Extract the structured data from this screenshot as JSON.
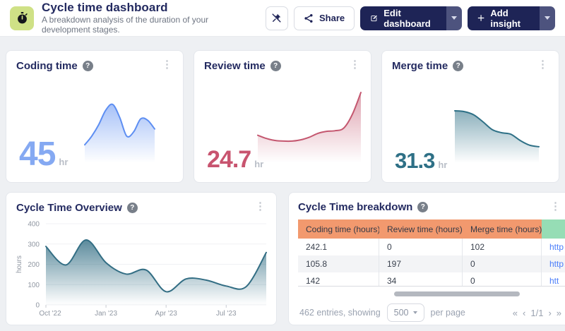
{
  "header": {
    "title": "Cycle time dashboard",
    "subtitle": "A breakdown analysis of the duration of your development stages.",
    "actions": {
      "share": "Share",
      "edit": "Edit dashboard",
      "add": "Add insight"
    }
  },
  "stat_cards": [
    {
      "title": "Coding time",
      "value": "45",
      "unit": "hr",
      "value_color": "#85a9f2"
    },
    {
      "title": "Review time",
      "value": "24.7",
      "unit": "hr",
      "value_color": "#c8546f"
    },
    {
      "title": "Merge time",
      "value": "31.3",
      "unit": "hr",
      "value_color": "#2e7086"
    }
  ],
  "overview_card": {
    "title": "Cycle Time Overview"
  },
  "breakdown_card": {
    "title": "Cycle Time breakdown",
    "columns": [
      "Coding time (hours)",
      "Review time (hours)",
      "Merge time (hours)",
      ""
    ],
    "rows": [
      [
        "242.1",
        "0",
        "102",
        "http"
      ],
      [
        "105.8",
        "197",
        "0",
        "http"
      ],
      [
        "142",
        "34",
        "0",
        "htt"
      ]
    ],
    "footer": {
      "entries": "462 entries, showing",
      "page_size": "500",
      "per_page": "per page",
      "pagination": {
        "first": "«",
        "prev": "‹",
        "current": "1/1",
        "next": "›",
        "last": "»"
      }
    }
  },
  "chart_data": [
    {
      "id": "coding-time-sparkline",
      "type": "area",
      "title": "Coding time",
      "color": "#5d8ef2",
      "values_relative": [
        0.44,
        0.56,
        0.72,
        0.92,
        1.0,
        0.82,
        0.56,
        0.62,
        0.8,
        0.78,
        0.66
      ]
    },
    {
      "id": "review-time-sparkline",
      "type": "area",
      "title": "Review time",
      "color": "#c4576f",
      "values_relative": [
        0.34,
        0.29,
        0.26,
        0.25,
        0.25,
        0.27,
        0.31,
        0.37,
        0.4,
        0.41,
        0.45,
        0.66,
        1.0
      ]
    },
    {
      "id": "merge-time-sparkline",
      "type": "area",
      "title": "Merge time",
      "color": "#2e7086",
      "values_relative": [
        1.0,
        0.99,
        0.95,
        0.86,
        0.76,
        0.72,
        0.7,
        0.62,
        0.56,
        0.54
      ]
    },
    {
      "id": "cycle-time-overview",
      "type": "area",
      "title": "Cycle Time Overview",
      "color": "#336e84",
      "xlabel": "",
      "ylabel": "hours",
      "ylim": [
        0,
        400
      ],
      "yticks": [
        0,
        100,
        200,
        300,
        400
      ],
      "x": [
        "Oct '22",
        "Nov '22",
        "Dec '22",
        "Jan '23",
        "Feb '23",
        "Mar '23",
        "Apr '23",
        "May '23",
        "Jun '23",
        "Jul '23",
        "Aug '23",
        "Sep '23"
      ],
      "x_tick_labels": [
        "Oct '22",
        "Jan '23",
        "Apr '23",
        "Jul '23"
      ],
      "x_tick_indices": [
        0,
        3,
        6,
        9
      ],
      "values": [
        288,
        197,
        320,
        208,
        152,
        172,
        65,
        128,
        122,
        93,
        90,
        258
      ],
      "legend": false,
      "grid": false
    }
  ]
}
